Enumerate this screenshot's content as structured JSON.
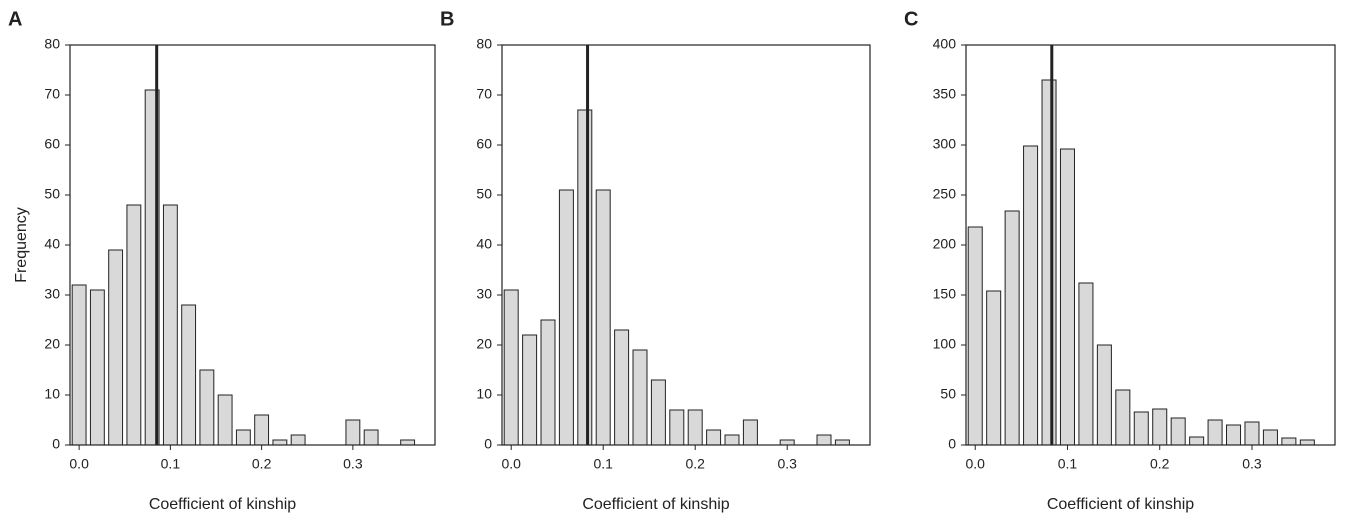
{
  "chart_data": [
    {
      "type": "bar",
      "panel_label": "A",
      "x_label": "Coefficient of kinship",
      "y_label": "Frequency",
      "color": "#d9d9d9",
      "x": [
        0,
        0.02,
        0.04,
        0.06,
        0.08,
        0.1,
        0.12,
        0.14,
        0.16,
        0.18,
        0.2,
        0.22,
        0.24,
        0.26,
        0.28,
        0.3,
        0.32,
        0.34,
        0.36
      ],
      "values": [
        32,
        31,
        39,
        48,
        71,
        48,
        28,
        15,
        10,
        3,
        6,
        1,
        2,
        0,
        0,
        5,
        3,
        0,
        1
      ],
      "reference_line": 0.085,
      "xlim": [
        -0.01,
        0.39
      ],
      "xticks": [
        {
          "value": 0,
          "label": "0.0"
        },
        0.1,
        0.2,
        0.3
      ],
      "ylim": [
        0,
        80
      ],
      "yticks": [
        0,
        10,
        20,
        30,
        40,
        50,
        60,
        70,
        80
      ]
    },
    {
      "type": "bar",
      "panel_label": "B",
      "x_label": "Coefficient of kinship",
      "color": "#d9d9d9",
      "x": [
        0,
        0.02,
        0.04,
        0.06,
        0.08,
        0.1,
        0.12,
        0.14,
        0.16,
        0.18,
        0.2,
        0.22,
        0.24,
        0.26,
        0.28,
        0.3,
        0.32,
        0.34,
        0.36
      ],
      "values": [
        31,
        22,
        25,
        51,
        67,
        51,
        23,
        19,
        13,
        7,
        7,
        3,
        2,
        5,
        0,
        1,
        0,
        2,
        1
      ],
      "reference_line": 0.083,
      "xlim": [
        -0.01,
        0.39
      ],
      "xticks": [
        {
          "value": 0,
          "label": "0.0"
        },
        0.1,
        0.2,
        0.3
      ],
      "ylim": [
        0,
        80
      ],
      "yticks": [
        0,
        10,
        20,
        30,
        40,
        50,
        60,
        70,
        80
      ]
    },
    {
      "type": "bar",
      "panel_label": "C",
      "x_label": "Coefficient of kinship",
      "color": "#d9d9d9",
      "x": [
        0,
        0.02,
        0.04,
        0.06,
        0.08,
        0.1,
        0.12,
        0.14,
        0.16,
        0.18,
        0.2,
        0.22,
        0.24,
        0.26,
        0.28,
        0.3,
        0.32,
        0.34,
        0.36
      ],
      "values": [
        218,
        154,
        234,
        299,
        365,
        296,
        162,
        100,
        55,
        33,
        36,
        27,
        8,
        25,
        20,
        23,
        15,
        7,
        5
      ],
      "reference_line": 0.083,
      "xlim": [
        -0.01,
        0.39
      ],
      "xticks": [
        {
          "value": 0,
          "label": "0.0"
        },
        0.1,
        0.2,
        0.3
      ],
      "ylim": [
        0,
        400
      ],
      "yticks": [
        0,
        50,
        100,
        150,
        200,
        250,
        300,
        350,
        400
      ]
    }
  ]
}
